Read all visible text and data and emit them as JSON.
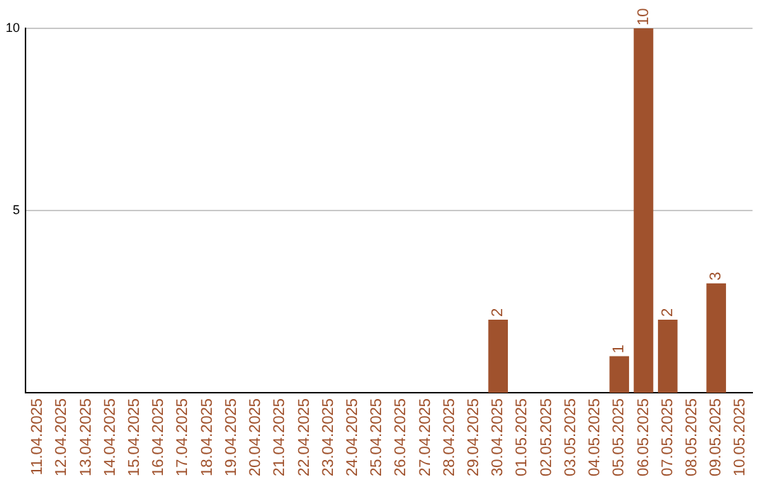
{
  "chart_data": {
    "type": "bar",
    "categories": [
      "11.04.2025",
      "12.04.2025",
      "13.04.2025",
      "14.04.2025",
      "15.04.2025",
      "16.04.2025",
      "17.04.2025",
      "18.04.2025",
      "19.04.2025",
      "20.04.2025",
      "21.04.2025",
      "22.04.2025",
      "23.04.2025",
      "24.04.2025",
      "25.04.2025",
      "26.04.2025",
      "27.04.2025",
      "28.04.2025",
      "29.04.2025",
      "30.04.2025",
      "01.05.2025",
      "02.05.2025",
      "03.05.2025",
      "04.05.2025",
      "05.05.2025",
      "06.05.2025",
      "07.05.2025",
      "08.05.2025",
      "09.05.2025",
      "10.05.2025"
    ],
    "values": [
      0,
      0,
      0,
      0,
      0,
      0,
      0,
      0,
      0,
      0,
      0,
      0,
      0,
      0,
      0,
      0,
      0,
      0,
      0,
      2,
      0,
      0,
      0,
      0,
      1,
      10,
      2,
      0,
      3,
      0
    ],
    "value_labels": [
      null,
      null,
      null,
      null,
      null,
      null,
      null,
      null,
      null,
      null,
      null,
      null,
      null,
      null,
      null,
      null,
      null,
      null,
      null,
      "2",
      null,
      null,
      null,
      null,
      "1",
      "10",
      "2",
      null,
      "3",
      null
    ],
    "color": "#a0522d",
    "ylim": [
      0,
      10
    ],
    "yticks": [
      5,
      10
    ],
    "grid": "y",
    "legend": false
  }
}
